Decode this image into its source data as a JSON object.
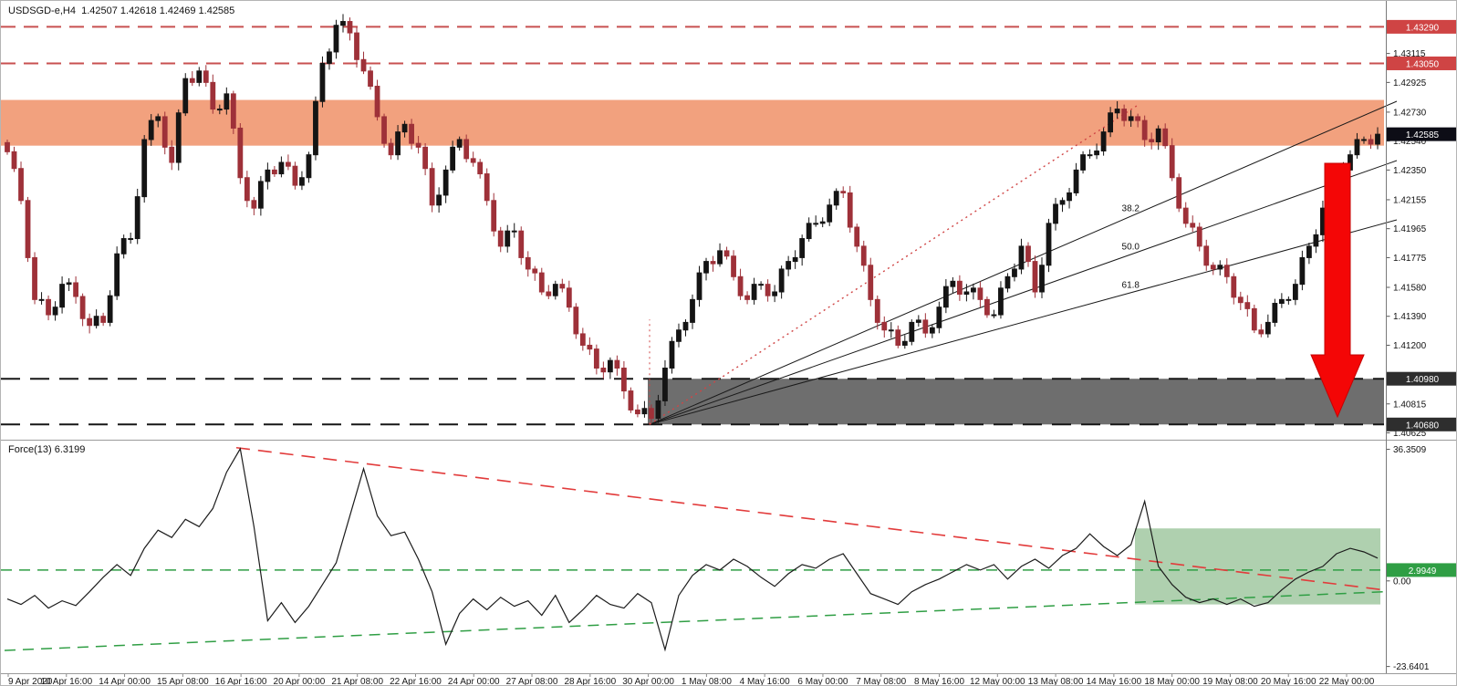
{
  "header": {
    "title": "USDSGD-e,H4  1.42507 1.42618 1.42469 1.42585"
  },
  "force_panel": {
    "title": "Force(13) 6.3199",
    "current_value": "2.9949",
    "axis_ticks": [
      "36.3509",
      "0.00",
      "-23.6401"
    ]
  },
  "price_axis": {
    "ticks": [
      "1.43115",
      "1.42925",
      "1.42730",
      "1.42540",
      "1.42350",
      "1.42155",
      "1.41965",
      "1.41775",
      "1.41580",
      "1.41390",
      "1.41200",
      "1.40815",
      "1.40625"
    ],
    "markers": [
      {
        "text": "1.43290",
        "price": 1.4329,
        "type": "resistance"
      },
      {
        "text": "1.43050",
        "price": 1.4305,
        "type": "resistance"
      },
      {
        "text": "1.42585",
        "price": 1.42585,
        "type": "current"
      },
      {
        "text": "1.40980",
        "price": 1.4098,
        "type": "support"
      },
      {
        "text": "1.40680",
        "price": 1.4068,
        "type": "support"
      }
    ]
  },
  "time_axis": {
    "labels": [
      "9 Apr 2020",
      "10 Apr 16:00",
      "14 Apr 00:00",
      "15 Apr 08:00",
      "16 Apr 16:00",
      "20 Apr 00:00",
      "21 Apr 08:00",
      "22 Apr 16:00",
      "24 Apr 00:00",
      "27 Apr 08:00",
      "28 Apr 16:00",
      "30 Apr 00:00",
      "1 May 08:00",
      "4 May 16:00",
      "6 May 00:00",
      "7 May 08:00",
      "8 May 16:00",
      "12 May 00:00",
      "13 May 08:00",
      "14 May 16:00",
      "18 May 00:00",
      "19 May 08:00",
      "20 May 16:00",
      "22 May 00:00"
    ]
  },
  "colors": {
    "bull": "#141414",
    "bear": "#9e3139",
    "supply_zone": "#f2a17e",
    "demand_zone": "#6e6e6e",
    "resistance_line": "#c85050",
    "support_line": "#161616",
    "arrow": "#f40606",
    "force_line": "#1c1c1c",
    "green": "#2f9e44",
    "red_trend": "#e23b3b",
    "marker_res_bg": "#cf4444",
    "marker_sup_bg": "#2e2e2e",
    "marker_cur_bg": "#0d0d16",
    "marker_green_bg": "#2f9e44",
    "zone_green": "rgba(110,170,110,0.55)",
    "axis_text": "#111111"
  },
  "chart_data": {
    "type": "bar",
    "subtype": "candlestick_with_oscillator",
    "symbol": "USDSGD-e",
    "timeframe": "H4",
    "ohlc_display": {
      "open": "1.42507",
      "high": "1.42618",
      "low": "1.42469",
      "close": "1.42585"
    },
    "ylim": [
      1.4058,
      1.4346
    ],
    "closes": [
      1.4247,
      1.4236,
      1.4215,
      1.41775,
      1.415,
      1.415,
      1.414,
      1.4145,
      1.416,
      1.4161,
      1.4152,
      1.41375,
      1.4133,
      1.4139,
      1.4135,
      1.41525,
      1.418,
      1.419,
      1.419,
      1.42175,
      1.4255,
      1.42675,
      1.427,
      1.425,
      1.424,
      1.42725,
      1.4295,
      1.42925,
      1.43,
      1.42925,
      1.4275,
      1.4275,
      1.4285,
      1.42625,
      1.423,
      1.4215,
      1.421,
      1.42275,
      1.4235,
      1.42325,
      1.424,
      1.42375,
      1.4225,
      1.423,
      1.4245,
      1.428,
      1.4305,
      1.43125,
      1.433,
      1.43325,
      1.4325,
      1.43075,
      1.43,
      1.429,
      1.427,
      1.42525,
      1.4245,
      1.426,
      1.4265,
      1.42525,
      1.425,
      1.4236,
      1.4212,
      1.42185,
      1.4235,
      1.425,
      1.4255,
      1.42425,
      1.424,
      1.42325,
      1.4215,
      1.4195,
      1.4185,
      1.4195,
      1.4195,
      1.41775,
      1.417,
      1.41675,
      1.4155,
      1.41525,
      1.416,
      1.41575,
      1.4145,
      1.41275,
      1.412,
      1.41175,
      1.4105,
      1.41025,
      1.411,
      1.4105,
      1.409,
      1.40775,
      1.4075,
      1.40785,
      1.4072,
      1.40835,
      1.4105,
      1.41225,
      1.413,
      1.4135,
      1.415,
      1.41675,
      1.4175,
      1.41735,
      1.4182,
      1.41785,
      1.4165,
      1.41525,
      1.415,
      1.416,
      1.416,
      1.41525,
      1.4155,
      1.417,
      1.4175,
      1.41775,
      1.419,
      1.42,
      1.42,
      1.4201,
      1.4212,
      1.4221,
      1.422,
      1.41975,
      1.4185,
      1.41725,
      1.415,
      1.4135,
      1.413,
      1.413,
      1.412,
      1.41225,
      1.4135,
      1.41365,
      1.4128,
      1.41315,
      1.4145,
      1.41585,
      1.4162,
      1.41535,
      1.4155,
      1.41575,
      1.415,
      1.414,
      1.414,
      1.41575,
      1.4165,
      1.417,
      1.4185,
      1.4175,
      1.4155,
      1.41725,
      1.42,
      1.42125,
      1.4215,
      1.422,
      1.4235,
      1.4245,
      1.4245,
      1.42475,
      1.426,
      1.42725,
      1.4275,
      1.42675,
      1.427,
      1.42675,
      1.4255,
      1.42535,
      1.4262,
      1.4251,
      1.423,
      1.421,
      1.42,
      1.41975,
      1.4185,
      1.41725,
      1.417,
      1.41725,
      1.4165,
      1.41515,
      1.4148,
      1.4144,
      1.413,
      1.41275,
      1.4135,
      1.41475,
      1.415,
      1.415,
      1.416,
      1.41775,
      1.4185,
      1.41925,
      1.421,
      1.42275,
      1.4235,
      1.4235,
      1.4245,
      1.4255,
      1.4255,
      1.4252,
      1.42585
    ],
    "levels": {
      "resistance": [
        1.4329,
        1.4305
      ],
      "support": [
        1.4098,
        1.4068
      ]
    },
    "zones": {
      "supply": {
        "from": 1.4251,
        "to": 1.4281
      },
      "demand": {
        "from": 1.4068,
        "to": 1.4098,
        "start_frac": 0.468
      }
    },
    "fib_fan": {
      "labels": [
        "38.2",
        "50.0",
        "61.8"
      ],
      "origin_price": 1.4068,
      "origin_frac": 0.469
    },
    "force_index": {
      "type": "line",
      "period": 13,
      "last_value": 6.3199,
      "level": 2.9949,
      "ylim": [
        -25.5,
        38.5
      ],
      "values": [
        -5,
        -6.5,
        -4,
        -7.5,
        -5.5,
        -6.8,
        -3,
        1,
        4.5,
        1.5,
        9,
        14,
        12,
        17,
        15,
        20,
        30,
        36.5,
        15,
        -11,
        -6,
        -11.5,
        -7,
        -1,
        5,
        18,
        31,
        18,
        12.5,
        13.5,
        6,
        -3,
        -17.5,
        -9,
        -5,
        -8,
        -4.5,
        -7,
        -5.5,
        -9.5,
        -4,
        -11.5,
        -8,
        -4,
        -6.5,
        -7.5,
        -3.5,
        -6,
        -19,
        -4,
        1.5,
        4.5,
        3,
        6,
        4,
        1,
        -1.5,
        2,
        4.5,
        3.5,
        6,
        7.5,
        2,
        -3.5,
        -5,
        -6.5,
        -3,
        -1,
        0.5,
        2.5,
        4.5,
        3,
        4.5,
        0.5,
        4,
        6,
        3.5,
        7,
        9,
        13,
        9.5,
        7,
        10,
        22,
        4,
        -1,
        -4.5,
        -6,
        -5,
        -6.5,
        -5,
        -7,
        -6,
        -2.5,
        0.5,
        2.5,
        4,
        7.5,
        9,
        8,
        6.3
      ]
    },
    "annotations": {
      "down_arrow": true,
      "price_dotted_red_trendline": true,
      "force_red_divergence_line": true,
      "force_green_rising_line": true,
      "force_green_zone": true
    }
  }
}
